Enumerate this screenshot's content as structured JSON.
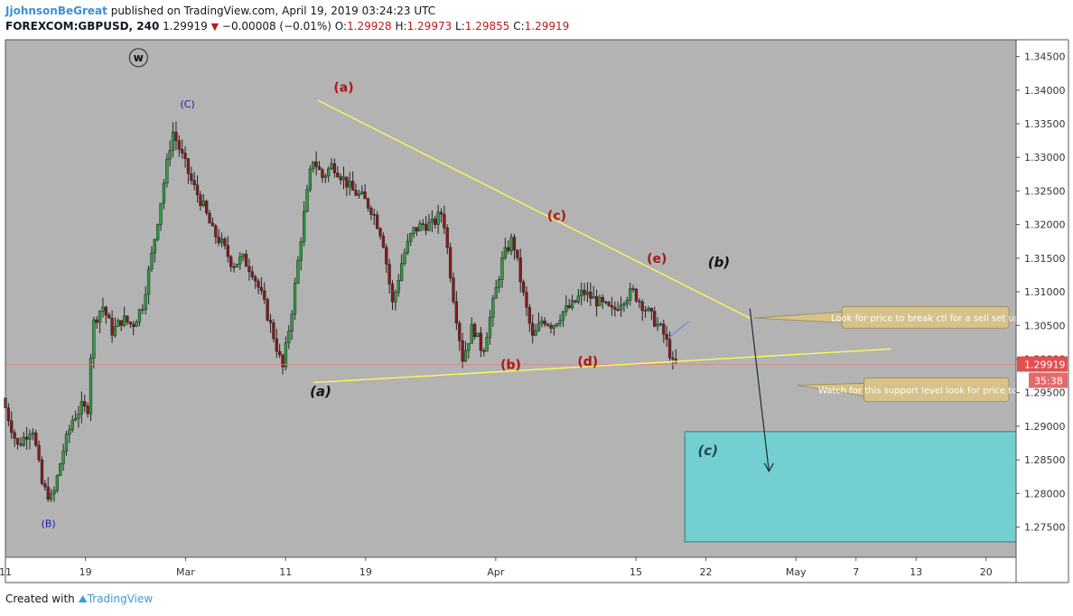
{
  "header": {
    "author": "JjohnsonBeGreat",
    "published_text": "published on TradingView.com, April 19, 2019 03:24:23 UTC",
    "symbol": "FOREXCOM:GBPUSD, 240",
    "last": "1.29919",
    "change": "−0.00008 (−0.01%)",
    "open_label": "O:",
    "open": "1.29928",
    "high_label": "H:",
    "high": "1.29973",
    "low_label": "L:",
    "low": "1.29855",
    "close_label": "C:",
    "close": "1.29919"
  },
  "footer": {
    "created_with": "Created with",
    "brand": "TradingView"
  },
  "colors": {
    "background": "#b3b3b3",
    "bull": "#2e9e3e",
    "bear": "#8b1a1a",
    "trendline": "#ffff4d",
    "target_box": "#74cfd1",
    "wave_red": "#b01515",
    "wave_blue": "#1a1ab5",
    "price_tag": "#e05050",
    "callout": "#d6c28a"
  },
  "chart_data": {
    "type": "candlestick",
    "title": "",
    "ylim": [
      1.2705,
      1.3475
    ],
    "y_ticks": [
      "1.34500",
      "1.34000",
      "1.33500",
      "1.33000",
      "1.32500",
      "1.32000",
      "1.31500",
      "1.31000",
      "1.30500",
      "1.30000",
      "1.29500",
      "1.29000",
      "1.28500",
      "1.28000",
      "1.27500"
    ],
    "x_ticks": [
      {
        "label": "11",
        "day": 0
      },
      {
        "label": "19",
        "day": 8
      },
      {
        "label": "Mar",
        "day": 18
      },
      {
        "label": "11",
        "day": 28
      },
      {
        "label": "19",
        "day": 36
      },
      {
        "label": "Apr",
        "day": 49
      },
      {
        "label": "15",
        "day": 63
      },
      {
        "label": "22",
        "day": 70
      },
      {
        "label": "May",
        "day": 79
      },
      {
        "label": "7",
        "day": 85
      },
      {
        "label": "13",
        "day": 91
      },
      {
        "label": "20",
        "day": 98
      }
    ],
    "x_range_days": [
      0,
      101
    ],
    "price_path": [
      [
        0,
        1.2942
      ],
      [
        1.5,
        1.287
      ],
      [
        3,
        1.29
      ],
      [
        4,
        1.281
      ],
      [
        5,
        1.279
      ],
      [
        6,
        1.286
      ],
      [
        7,
        1.291
      ],
      [
        8,
        1.293
      ],
      [
        8.5,
        1.292
      ],
      [
        9,
        1.305
      ],
      [
        10,
        1.308
      ],
      [
        11,
        1.304
      ],
      [
        12,
        1.306
      ],
      [
        13,
        1.305
      ],
      [
        14,
        1.308
      ],
      [
        15,
        1.316
      ],
      [
        16,
        1.325
      ],
      [
        17,
        1.334
      ],
      [
        18,
        1.33
      ],
      [
        19,
        1.326
      ],
      [
        20,
        1.323
      ],
      [
        21,
        1.319
      ],
      [
        22,
        1.317
      ],
      [
        23,
        1.314
      ],
      [
        24,
        1.315
      ],
      [
        25,
        1.313
      ],
      [
        26,
        1.309
      ],
      [
        27,
        1.304
      ],
      [
        28,
        1.2985
      ],
      [
        29,
        1.308
      ],
      [
        30,
        1.32
      ],
      [
        31,
        1.33
      ],
      [
        32,
        1.327
      ],
      [
        33,
        1.329
      ],
      [
        34,
        1.327
      ],
      [
        35,
        1.325
      ],
      [
        36,
        1.324
      ],
      [
        37,
        1.322
      ],
      [
        38,
        1.318
      ],
      [
        39,
        1.308
      ],
      [
        40,
        1.315
      ],
      [
        41,
        1.319
      ],
      [
        42,
        1.32
      ],
      [
        43,
        1.32
      ],
      [
        44,
        1.322
      ],
      [
        45,
        1.31
      ],
      [
        46,
        1.3
      ],
      [
        47,
        1.305
      ],
      [
        48,
        1.301
      ],
      [
        49,
        1.308
      ],
      [
        50,
        1.315
      ],
      [
        51,
        1.318
      ],
      [
        52,
        1.31
      ],
      [
        53,
        1.303
      ],
      [
        54,
        1.306
      ],
      [
        55,
        1.305
      ],
      [
        56,
        1.307
      ],
      [
        57,
        1.308
      ],
      [
        58,
        1.31
      ],
      [
        59,
        1.309
      ],
      [
        60,
        1.308
      ],
      [
        61,
        1.307
      ],
      [
        62,
        1.309
      ],
      [
        63,
        1.31
      ],
      [
        64,
        1.308
      ],
      [
        65,
        1.306
      ],
      [
        66,
        1.304
      ],
      [
        66.5,
        1.302
      ],
      [
        67,
        1.2992
      ]
    ],
    "last_price": 1.29919,
    "countdown": "35:38",
    "trendlines": [
      {
        "name": "upper",
        "x": [
          31.2,
          74.5
        ],
        "y": [
          1.3385,
          1.306
        ]
      },
      {
        "name": "lower",
        "x": [
          30.8,
          88.5
        ],
        "y": [
          1.2965,
          1.3015
        ]
      },
      {
        "name": "arrow",
        "x": [
          74.4,
          76.3
        ],
        "y": [
          1.3075,
          1.2833
        ]
      }
    ],
    "target_zone": {
      "x": [
        67.9,
        101
      ],
      "y": [
        1.2728,
        1.2892
      ]
    },
    "wave_labels": [
      {
        "text": "w",
        "x": 13.3,
        "y": 1.3443,
        "style": "circle"
      },
      {
        "text": "(C)",
        "x": 18.2,
        "y": 1.3374,
        "style": "blue"
      },
      {
        "text": "(B)",
        "x": 4.3,
        "y": 1.275,
        "style": "blue"
      },
      {
        "text": "(a)",
        "x": 33.8,
        "y": 1.3398,
        "style": "red"
      },
      {
        "text": "(b)",
        "x": 50.5,
        "y": 1.2985,
        "style": "red"
      },
      {
        "text": "(c)",
        "x": 55.1,
        "y": 1.3207,
        "style": "red"
      },
      {
        "text": "(d)",
        "x": 58.2,
        "y": 1.299,
        "style": "red"
      },
      {
        "text": "(e)",
        "x": 65.1,
        "y": 1.3143,
        "style": "red"
      },
      {
        "text": "(a)",
        "x": 31.5,
        "y": 1.2945,
        "style": "black"
      },
      {
        "text": "(b)",
        "x": 71.3,
        "y": 1.3137,
        "style": "black"
      },
      {
        "text": "(c)",
        "x": 70.2,
        "y": 1.2857,
        "style": "dark-teal"
      }
    ],
    "callouts": [
      {
        "text": "Look for price to break ctl for a sell set up",
        "anchor_x": 74.8,
        "anchor_y": 1.3061,
        "box_x": [
          83.6,
          108.6
        ],
        "box_y": [
          1.3046,
          1.3078
        ]
      },
      {
        "text": "Watch for this support level look for price to break it",
        "anchor_x": 79.1,
        "anchor_y": 1.2961,
        "box_x": [
          85.8,
          116.2
        ],
        "box_y": [
          1.2937,
          1.2972
        ]
      }
    ]
  }
}
